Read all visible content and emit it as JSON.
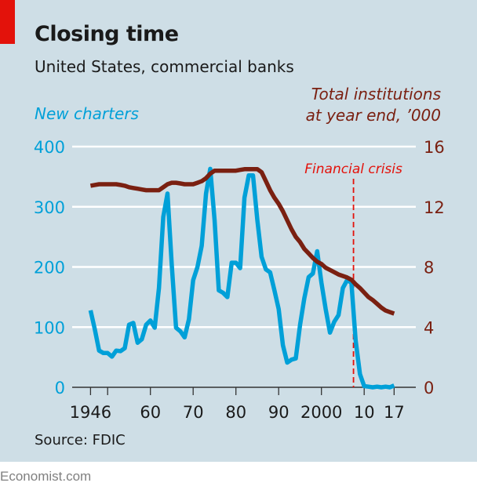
{
  "header": {
    "title": "Closing time",
    "subtitle": "United States, commercial banks"
  },
  "footer": {
    "source": "Source: FDIC",
    "brand": "Economist.com"
  },
  "colors": {
    "background": "#cedee6",
    "accent_bar": "#e3120b",
    "new_charters": "#00a0d8",
    "total_institutions": "#7a2011",
    "annotation": "#e3120b"
  },
  "chart_data": {
    "type": "line",
    "grid": true,
    "x": [
      1946,
      1947,
      1948,
      1949,
      1950,
      1951,
      1952,
      1953,
      1954,
      1955,
      1956,
      1957,
      1958,
      1959,
      1960,
      1961,
      1962,
      1963,
      1964,
      1965,
      1966,
      1967,
      1968,
      1969,
      1970,
      1971,
      1972,
      1973,
      1974,
      1975,
      1976,
      1977,
      1978,
      1979,
      1980,
      1981,
      1982,
      1983,
      1984,
      1985,
      1986,
      1987,
      1988,
      1989,
      1990,
      1991,
      1992,
      1993,
      1994,
      1995,
      1996,
      1997,
      1998,
      1999,
      2000,
      2001,
      2002,
      2003,
      2004,
      2005,
      2006,
      2007,
      2008,
      2009,
      2010,
      2011,
      2012,
      2013,
      2014,
      2015,
      2016,
      2017
    ],
    "xlim": [
      1946,
      2017
    ],
    "x_ticks": [
      1946,
      1950,
      1960,
      1970,
      1980,
      1990,
      2000,
      2010,
      2017
    ],
    "x_tick_labels": [
      "1946",
      "",
      "60",
      "70",
      "80",
      "90",
      "2000",
      "10",
      "17"
    ],
    "left_axis": {
      "label": "New charters",
      "ylim": [
        0,
        400
      ],
      "ticks": [
        "0",
        "100",
        "200",
        "300",
        "400"
      ]
    },
    "right_axis": {
      "label_lines": [
        "Total institutions",
        "at year end, ’000"
      ],
      "ylim": [
        0,
        16
      ],
      "ticks": [
        "0",
        "4",
        "8",
        "12",
        "16"
      ]
    },
    "series": [
      {
        "name": "New charters",
        "axis": "left",
        "values": [
          128,
          96,
          61,
          57,
          57,
          51,
          61,
          60,
          65,
          104,
          107,
          74,
          80,
          104,
          111,
          99,
          165,
          283,
          322,
          204,
          99,
          93,
          83,
          113,
          178,
          200,
          235,
          322,
          363,
          278,
          161,
          157,
          150,
          207,
          207,
          198,
          315,
          352,
          352,
          278,
          217,
          196,
          191,
          161,
          130,
          70,
          41,
          46,
          48,
          104,
          148,
          183,
          189,
          226,
          174,
          130,
          91,
          109,
          120,
          165,
          178,
          174,
          78,
          22,
          2,
          1,
          0,
          1,
          0,
          1,
          0,
          3
        ]
      },
      {
        "name": "Total institutions at year end, '000",
        "axis": "right",
        "values": [
          13.4,
          13.45,
          13.5,
          13.5,
          13.5,
          13.5,
          13.5,
          13.45,
          13.4,
          13.3,
          13.25,
          13.2,
          13.15,
          13.1,
          13.1,
          13.1,
          13.1,
          13.3,
          13.5,
          13.6,
          13.6,
          13.55,
          13.5,
          13.5,
          13.5,
          13.6,
          13.7,
          13.9,
          14.2,
          14.4,
          14.4,
          14.4,
          14.4,
          14.4,
          14.4,
          14.45,
          14.5,
          14.5,
          14.5,
          14.5,
          14.3,
          13.7,
          13.1,
          12.6,
          12.2,
          11.7,
          11.1,
          10.5,
          10.0,
          9.65,
          9.2,
          8.9,
          8.6,
          8.35,
          8.2,
          7.95,
          7.8,
          7.65,
          7.5,
          7.4,
          7.3,
          7.15,
          6.85,
          6.6,
          6.3,
          6.0,
          5.8,
          5.55,
          5.3,
          5.1,
          5.0,
          4.9
        ]
      }
    ],
    "annotations": [
      {
        "text": "Financial crisis",
        "x": 2007.5,
        "style": "dashed-vertical"
      }
    ]
  }
}
